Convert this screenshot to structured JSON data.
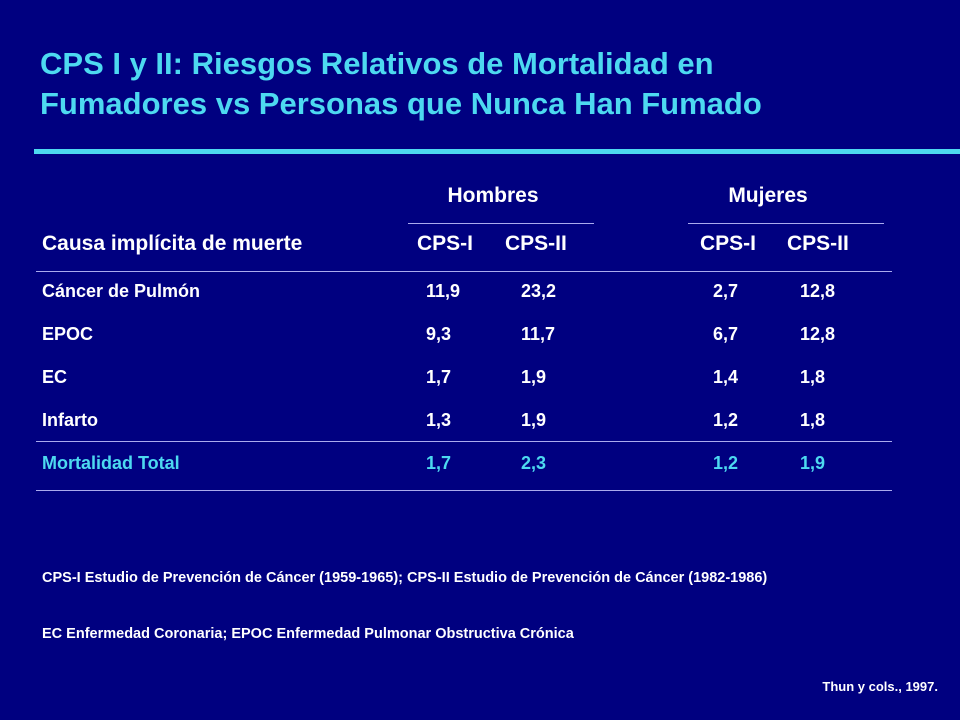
{
  "title": {
    "line1": "CPS I y II: Riesgos Relativos de Mortalidad en",
    "line2": "Fumadores vs Personas que Nunca Han Fumado"
  },
  "table": {
    "groups": [
      "Hombres",
      "Mujeres"
    ],
    "cause_header": "Causa implícita de muerte",
    "sub_headers": [
      "CPS-I",
      "CPS-II",
      "CPS-I",
      "CPS-II"
    ],
    "rows": [
      {
        "cause": "Cáncer de Pulmón",
        "values": [
          "11,9",
          "23,2",
          "2,7",
          "12,8"
        ]
      },
      {
        "cause": "EPOC",
        "values": [
          "9,3",
          "11,7",
          "6,7",
          "12,8"
        ]
      },
      {
        "cause": "EC",
        "values": [
          "1,7",
          "1,9",
          "1,4",
          "1,8"
        ]
      },
      {
        "cause": "Infarto",
        "values": [
          "1,3",
          "1,9",
          "1,2",
          "1,8"
        ]
      },
      {
        "cause": "Mortalidad Total",
        "values": [
          "1,7",
          "2,3",
          "1,2",
          "1,9"
        ]
      }
    ]
  },
  "footnotes": {
    "line1": "CPS-I Estudio de Prevención de Cáncer (1959-1965); CPS-II Estudio de Prevención de Cáncer (1982-1986)",
    "line2": "EC Enfermedad Coronaria; EPOC Enfermedad Pulmonar Obstructiva Crónica"
  },
  "source": "Thun y cols., 1997.",
  "colors": {
    "background": "#000080",
    "accent": "#4dd9f0",
    "text": "#ffffff"
  }
}
